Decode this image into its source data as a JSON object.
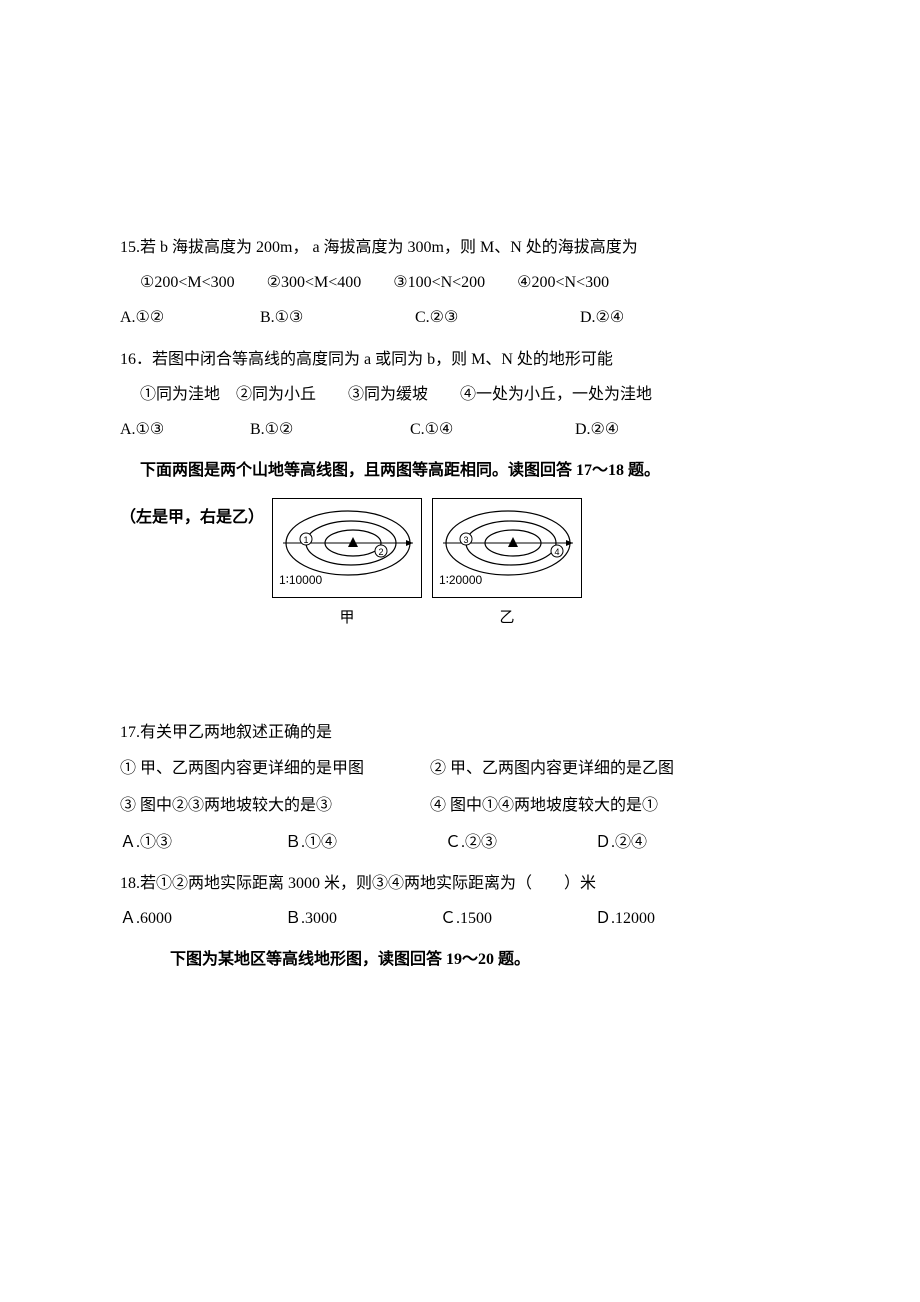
{
  "q15": {
    "text": "15.若 b 海拔高度为 200m， a 海拔高度为 300m，则 M、N 处的海拔高度为",
    "stmts": "①200<M<300　　②300<M<400　　③100<N<200　　④200<N<300",
    "opts": {
      "a": "A.①②",
      "b": "B.①③",
      "c": "C.②③",
      "d": "D.②④"
    },
    "opt_widths": [
      140,
      155,
      165,
      0
    ]
  },
  "q16": {
    "text": "16．若图中闭合等高线的高度同为 a 或同为 b，则 M、N 处的地形可能",
    "stmts": "①同为洼地　②同为小丘　　③同为缓坡　　④一处为小丘，一处为洼地",
    "opts": {
      "a": "A.①③",
      "b": "B.①②",
      "c": "C.①④",
      "d": "D.②④"
    },
    "opt_widths": [
      130,
      160,
      165,
      0
    ]
  },
  "intro_17_18": "下面两图是两个山地等高线图，且两图等高距相同。读图回答 17～18 题。",
  "fig_caption": "（左是甲，右是乙）",
  "fig_jia": {
    "scale": "1∶10000",
    "label": "甲",
    "circled": [
      "①",
      "②"
    ]
  },
  "fig_yi": {
    "scale": "1∶20000",
    "label": "乙",
    "circled": [
      "③",
      "④"
    ]
  },
  "q17": {
    "text": "17.有关甲乙两地叙述正确的是",
    "s1": "① 甲、乙两图内容更详细的是甲图",
    "s2": "② 甲、乙两图内容更详细的是乙图",
    "s3": "③ 图中②③两地坡较大的是③",
    "s4": "④ 图中①④两地坡度较大的是①",
    "opts": {
      "a": "Ａ.①③",
      "b": "Ｂ.①④",
      "c": "Ｃ.②③",
      "d": "Ｄ.②④"
    },
    "opt_widths": [
      165,
      160,
      150,
      0
    ]
  },
  "q18": {
    "text": "18.若①②两地实际距离 3000 米，则③④两地实际距离为（　　）米",
    "opts": {
      "a": "Ａ.6000",
      "b": "Ｂ.3000",
      "c": "Ｃ.1500",
      "d": "Ｄ.12000"
    },
    "opt_widths": [
      165,
      155,
      155,
      0
    ]
  },
  "intro_19_20": "下图为某地区等高线地形图，读图回答 19～20 题。",
  "colors": {
    "text": "#000000",
    "bg": "#ffffff",
    "stroke": "#000000"
  }
}
